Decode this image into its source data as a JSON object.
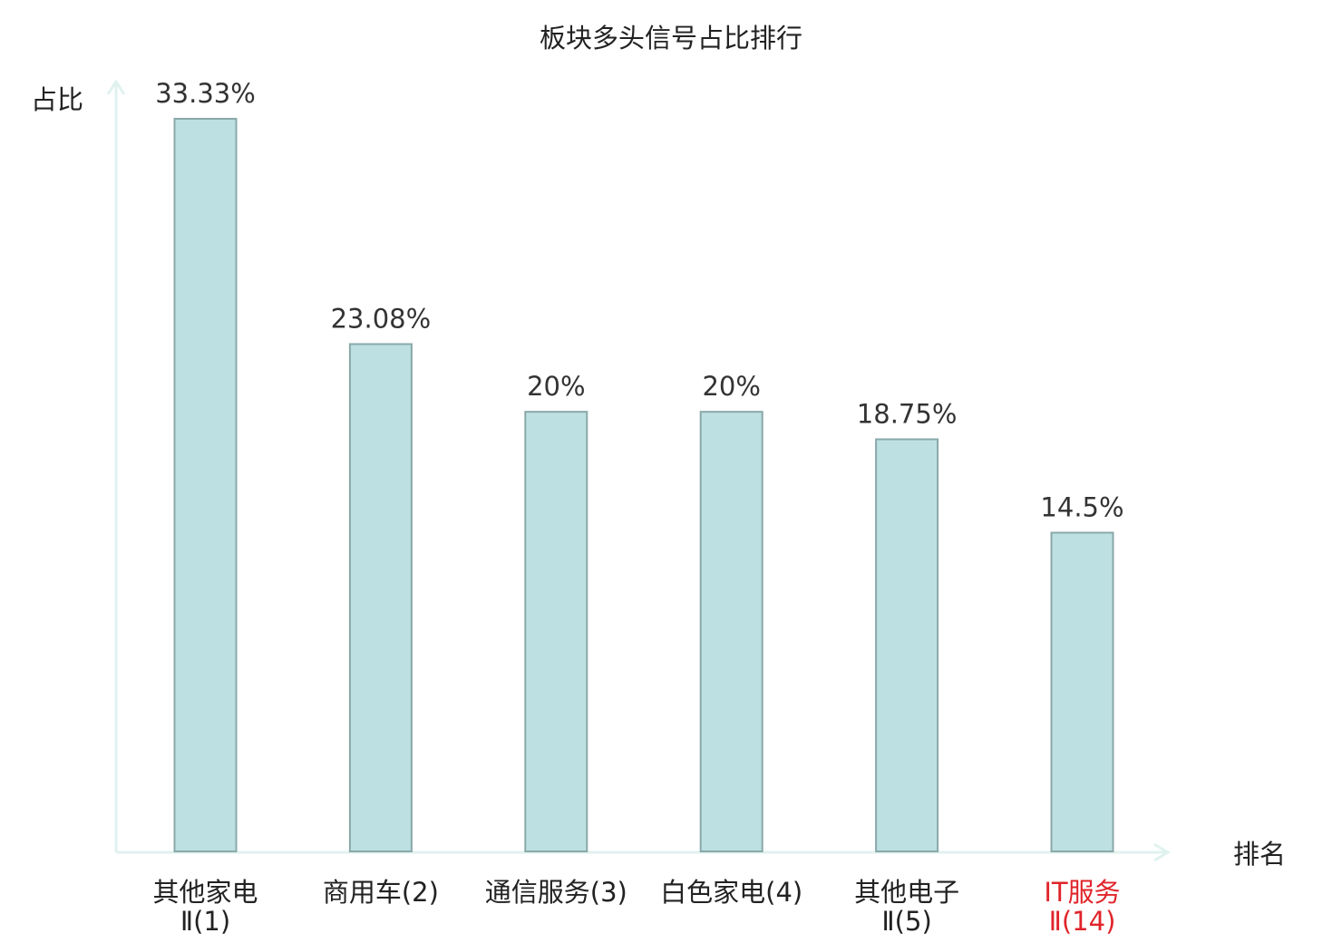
{
  "chart_data": {
    "type": "bar",
    "title": "板块多头信号占比排行",
    "ylabel": "占比",
    "xlabel": "排名",
    "ylim": [
      0,
      33.33
    ],
    "grid": false,
    "legend": "none",
    "categories": [
      {
        "line1": "其他家电",
        "line2": "Ⅱ(1)",
        "highlight": false
      },
      {
        "line1": "商用车(2)",
        "line2": "",
        "highlight": false
      },
      {
        "line1": "通信服务(3)",
        "line2": "",
        "highlight": false
      },
      {
        "line1": "白色家电(4)",
        "line2": "",
        "highlight": false
      },
      {
        "line1": "其他电子",
        "line2": "Ⅱ(5)",
        "highlight": false
      },
      {
        "line1": "IT服务",
        "line2": "Ⅱ(14)",
        "highlight": true
      }
    ],
    "values": [
      33.33,
      23.08,
      20,
      20,
      18.75,
      14.5
    ],
    "value_labels": [
      "33.33%",
      "23.08%",
      "20%",
      "20%",
      "18.75%",
      "14.5%"
    ]
  },
  "colors": {
    "bar_fill": "#bde0e2",
    "bar_stroke": "#8aa8a9",
    "axis": "#e0f2ef",
    "text": "#222222",
    "highlight": "#e0242a"
  }
}
